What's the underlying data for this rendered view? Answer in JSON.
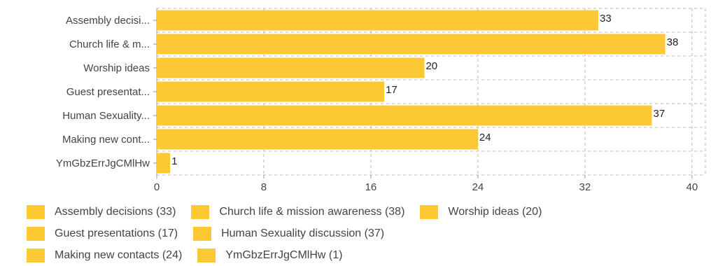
{
  "chart_data": {
    "type": "bar",
    "orientation": "horizontal",
    "categories": [
      "Assembly decisi...",
      "Church life & m...",
      "Worship ideas",
      "Guest presentat...",
      "Human Sexuality...",
      "Making new cont...",
      "YmGbzErrJgCMlHw"
    ],
    "values": [
      33,
      38,
      20,
      17,
      37,
      24,
      1
    ],
    "data_labels": [
      "33",
      "38",
      "20",
      "17",
      "37",
      "24",
      "1"
    ],
    "xlim": [
      0,
      41
    ],
    "x_ticks": [
      0,
      8,
      16,
      24,
      32,
      40
    ],
    "x_tick_labels": [
      "0",
      "8",
      "16",
      "24",
      "32",
      "40"
    ],
    "grid": true,
    "grid_style": "dashed",
    "bar_color": "#fcc934",
    "title": "",
    "xlabel": "",
    "ylabel": "",
    "legend_position": "bottom",
    "legend": [
      [
        "Assembly decisions (33)",
        "Church life & mission awareness (38)",
        "Worship ideas (20)"
      ],
      [
        "Guest presentations (17)",
        "Human Sexuality discussion (37)"
      ],
      [
        "Making new contacts (24)",
        "YmGbzErrJgCMlHw (1)"
      ]
    ]
  }
}
